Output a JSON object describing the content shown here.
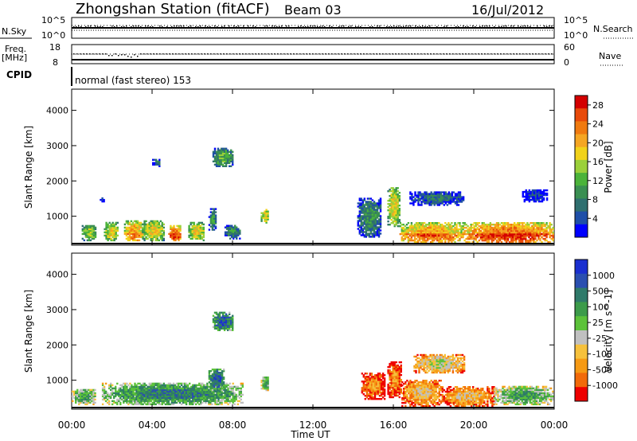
{
  "header": {
    "station": "Zhongshan Station (fitACF)",
    "beam": "Beam 03",
    "date": "16/Jul/2012"
  },
  "status_panels": {
    "nsky_label": "N.Sky",
    "nsky_ticks": [
      "10^5",
      "10^0"
    ],
    "nsearch_label": "N.Search",
    "nsearch_ticks": [
      "10^5",
      "10^0"
    ],
    "freq_label": "Freq.",
    "freq_unit": "[MHz]",
    "freq_ticks": [
      "18",
      "8"
    ],
    "nave_label": "Nave",
    "nave_ticks": [
      "60",
      "0"
    ],
    "cpid_label": "CPID",
    "cpid_text": "normal (fast stereo) 153"
  },
  "chart_data": [
    {
      "type": "heatmap",
      "title": "",
      "xlabel": "Time UT",
      "ylabel": "Slant Range [km]",
      "x_ticks": [
        "00:00",
        "04:00",
        "08:00",
        "12:00",
        "16:00",
        "20:00",
        "00:00"
      ],
      "xlim_hours": [
        0,
        24
      ],
      "y_ticks": [
        "1000",
        "2000",
        "3000",
        "4000"
      ],
      "ylim": [
        180,
        4600
      ],
      "colorbar": {
        "label": "Power [dB]",
        "ticks": [
          "4",
          "8",
          "12",
          "16",
          "20",
          "24",
          "28"
        ],
        "range": [
          0,
          30
        ],
        "colors": [
          "#0000ff",
          "#1f4fa8",
          "#2f6f6f",
          "#3a8f52",
          "#4bb33a",
          "#9bd03a",
          "#f1d21a",
          "#f5a623",
          "#f07a10",
          "#e84a0a",
          "#d40000"
        ]
      },
      "echo_regions": [
        {
          "t": [
            0.5,
            1.2
          ],
          "r": [
            300,
            750
          ],
          "level": 5
        },
        {
          "t": [
            1.6,
            2.3
          ],
          "r": [
            300,
            800
          ],
          "level": 6
        },
        {
          "t": [
            2.6,
            3.5
          ],
          "r": [
            300,
            850
          ],
          "level": 7
        },
        {
          "t": [
            3.5,
            4.6
          ],
          "r": [
            300,
            850
          ],
          "level": 6
        },
        {
          "t": [
            4.8,
            5.4
          ],
          "r": [
            300,
            750
          ],
          "level": 8
        },
        {
          "t": [
            5.8,
            6.6
          ],
          "r": [
            300,
            800
          ],
          "level": 6
        },
        {
          "t": [
            6.8,
            7.2
          ],
          "r": [
            600,
            1200
          ],
          "level": 3
        },
        {
          "t": [
            7.6,
            8.4
          ],
          "r": [
            350,
            750
          ],
          "level": 3
        },
        {
          "t": [
            7.0,
            8.0
          ],
          "r": [
            2400,
            2900
          ],
          "level": 4
        },
        {
          "t": [
            9.4,
            9.8
          ],
          "r": [
            800,
            1200
          ],
          "level": 6
        },
        {
          "t": [
            14.2,
            15.4
          ],
          "r": [
            400,
            1500
          ],
          "level": 3
        },
        {
          "t": [
            15.7,
            16.3
          ],
          "r": [
            700,
            1800
          ],
          "level": 6
        },
        {
          "t": [
            16.3,
            19.5
          ],
          "r": [
            250,
            800
          ],
          "level": 7
        },
        {
          "t": [
            19.5,
            24.0
          ],
          "r": [
            250,
            800
          ],
          "level": 8
        },
        {
          "t": [
            16.8,
            19.5
          ],
          "r": [
            1300,
            1700
          ],
          "level": 2
        },
        {
          "t": [
            22.4,
            23.6
          ],
          "r": [
            1400,
            1750
          ],
          "level": 1
        },
        {
          "t": [
            1.4,
            1.6
          ],
          "r": [
            1400,
            1500
          ],
          "level": 1
        },
        {
          "t": [
            4.0,
            4.4
          ],
          "r": [
            2400,
            2600
          ],
          "level": 2
        }
      ]
    },
    {
      "type": "heatmap",
      "title": "",
      "xlabel": "Time UT",
      "ylabel": "Slant Range [km]",
      "x_ticks": [
        "00:00",
        "04:00",
        "08:00",
        "12:00",
        "16:00",
        "20:00",
        "00:00"
      ],
      "xlim_hours": [
        0,
        24
      ],
      "y_ticks": [
        "1000",
        "2000",
        "3000",
        "4000"
      ],
      "ylim": [
        180,
        4600
      ],
      "colorbar": {
        "label": "Velocity [m s^-1]",
        "ticks": [
          "1000",
          "500",
          "100",
          "25",
          "-25",
          "-100",
          "-500",
          "-1000"
        ],
        "range": [
          -1200,
          1200
        ],
        "colors": [
          "#ee0000",
          "#f26a0a",
          "#f69a14",
          "#f6c13c",
          "#c0c0c0",
          "#5cc23a",
          "#3c9b4a",
          "#2f7a6a",
          "#2a4fb0",
          "#1a2fd0"
        ]
      },
      "echo_regions": [
        {
          "t": [
            0.0,
            1.2
          ],
          "r": [
            300,
            750
          ],
          "level": 6
        },
        {
          "t": [
            1.5,
            8.5
          ],
          "r": [
            300,
            900
          ],
          "level": 7
        },
        {
          "t": [
            6.8,
            7.6
          ],
          "r": [
            700,
            1300
          ],
          "level": 8
        },
        {
          "t": [
            7.0,
            8.0
          ],
          "r": [
            2400,
            2900
          ],
          "level": 8
        },
        {
          "t": [
            9.4,
            9.8
          ],
          "r": [
            700,
            1100
          ],
          "level": 6
        },
        {
          "t": [
            14.4,
            15.6
          ],
          "r": [
            450,
            1200
          ],
          "level": 2
        },
        {
          "t": [
            15.7,
            16.4
          ],
          "r": [
            500,
            1500
          ],
          "level": 2
        },
        {
          "t": [
            16.4,
            18.4
          ],
          "r": [
            250,
            1000
          ],
          "level": 3
        },
        {
          "t": [
            18.4,
            21.0
          ],
          "r": [
            250,
            800
          ],
          "level": 3
        },
        {
          "t": [
            21.0,
            24.0
          ],
          "r": [
            300,
            800
          ],
          "level": 6
        },
        {
          "t": [
            17.0,
            19.5
          ],
          "r": [
            1200,
            1700
          ],
          "level": 4
        }
      ]
    }
  ]
}
